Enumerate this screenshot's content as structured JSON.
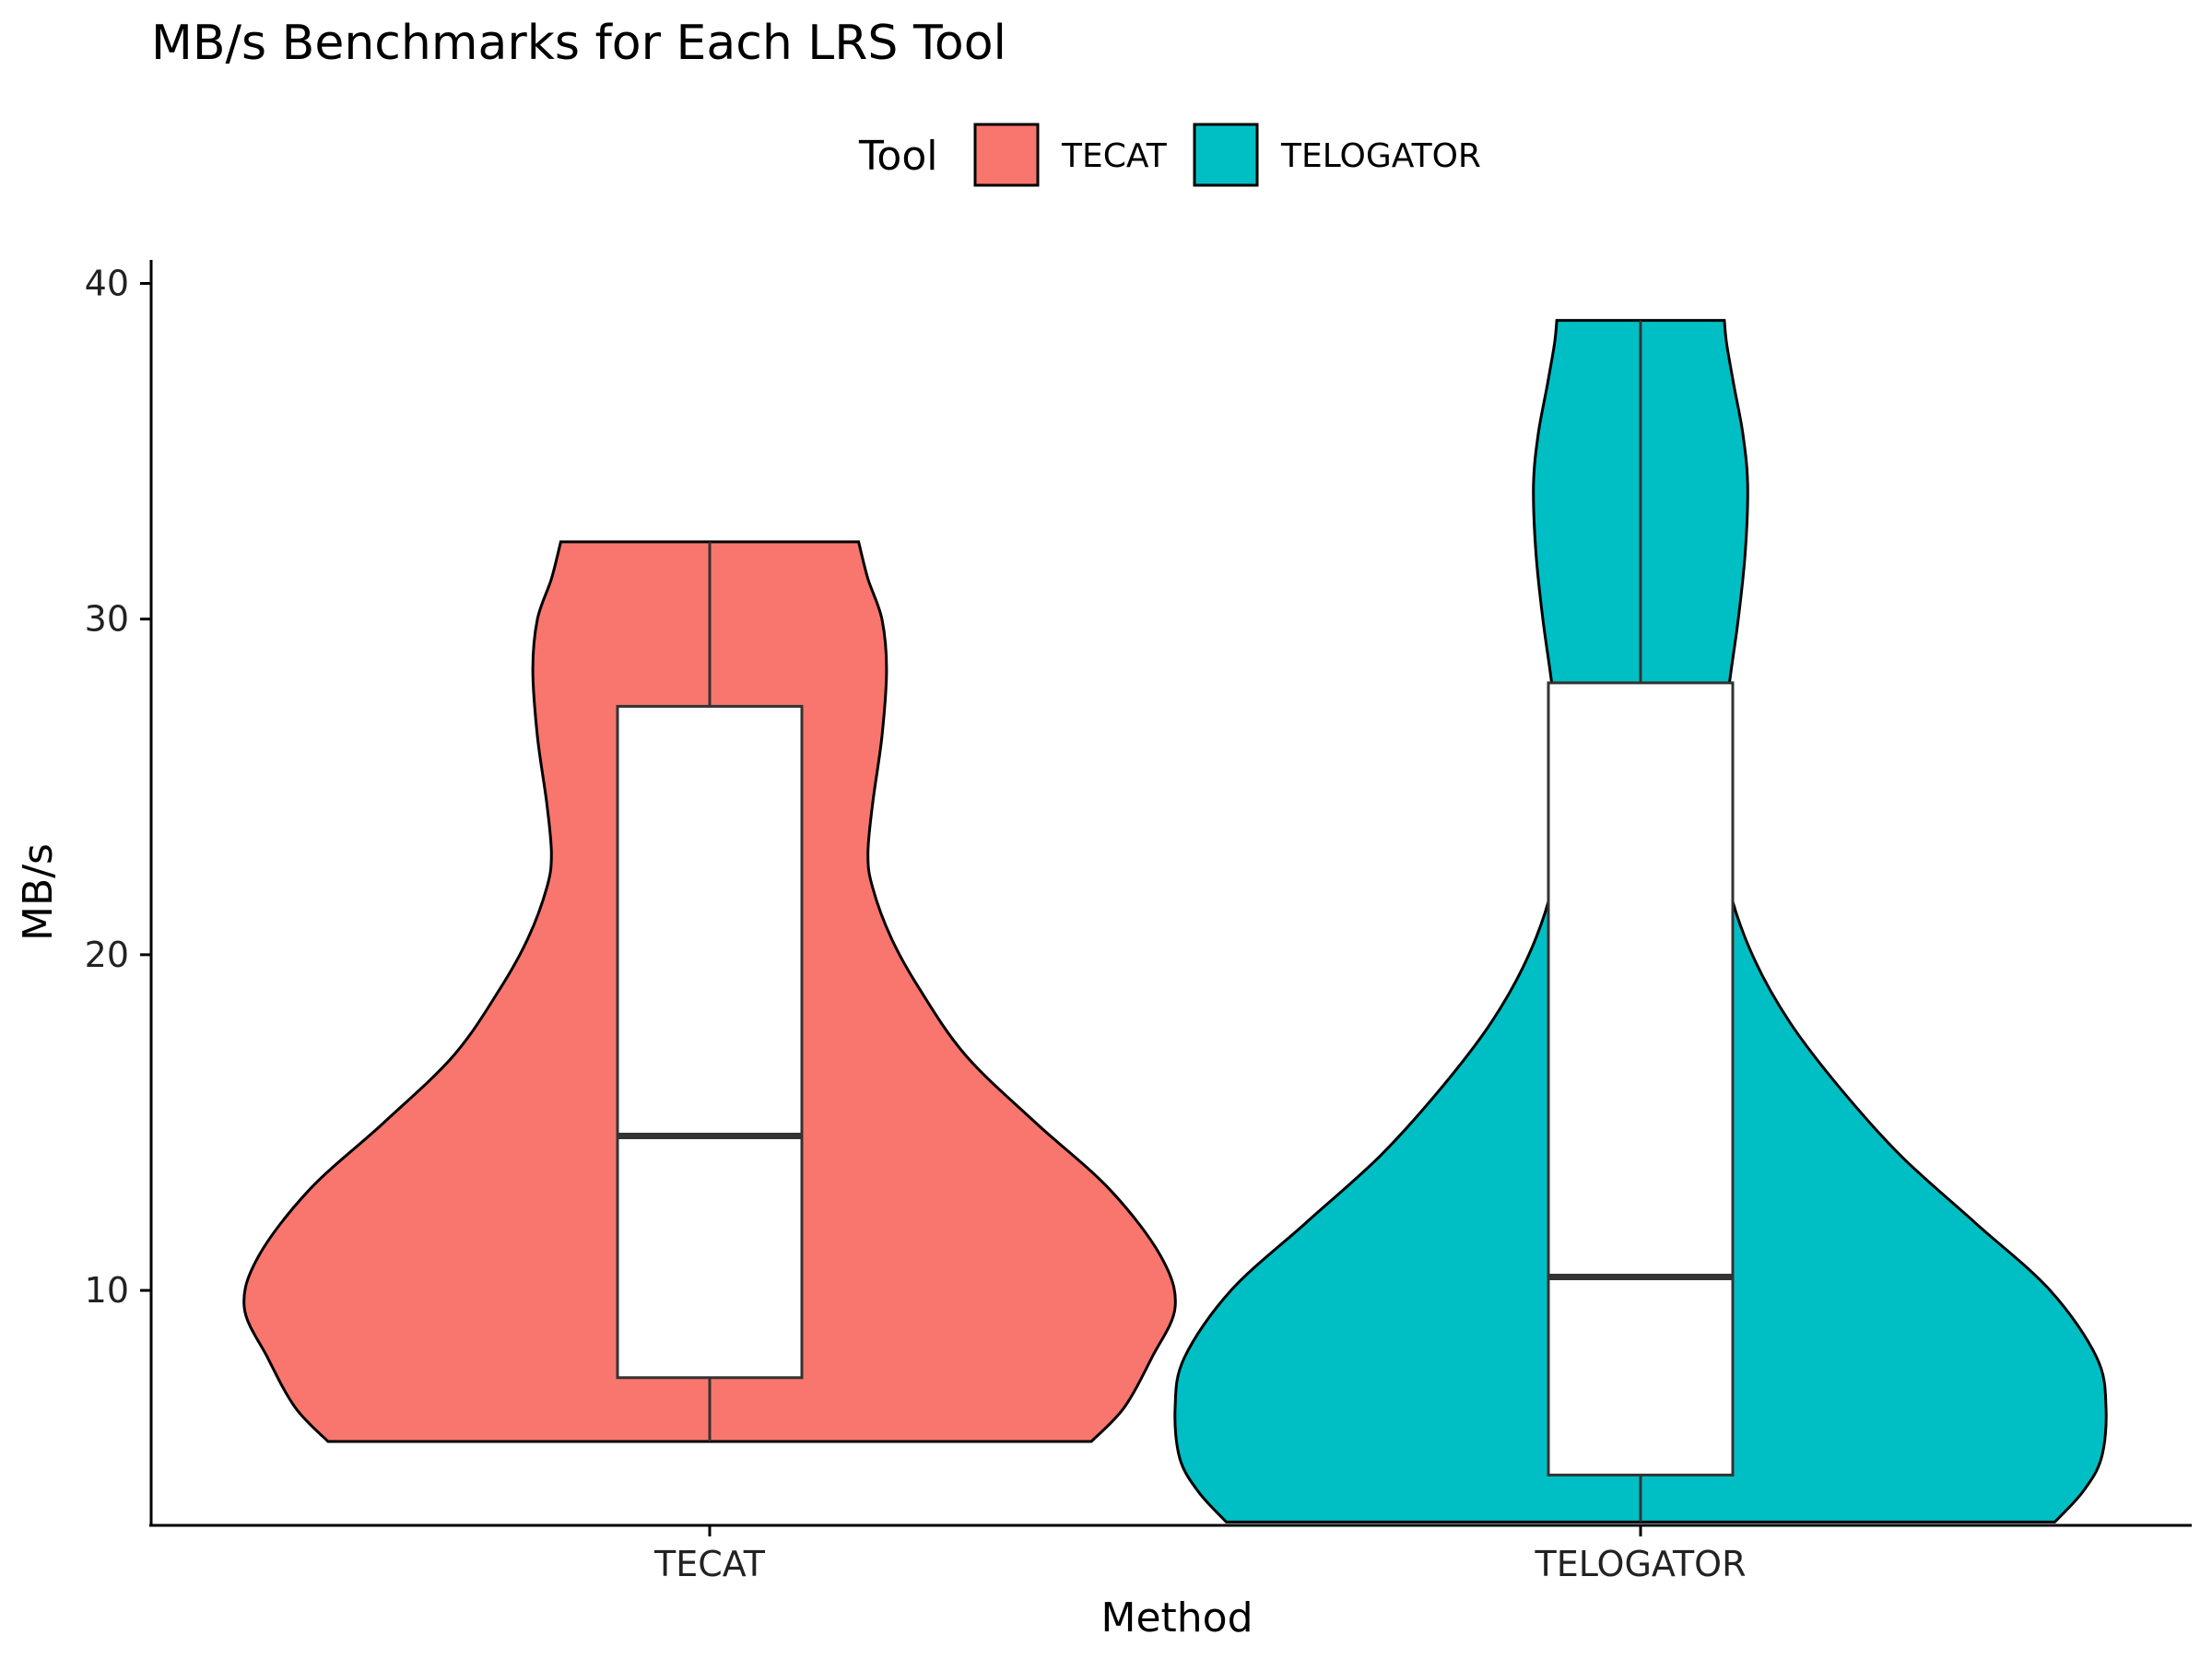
{
  "chart_data": {
    "type": "violin",
    "title": "MB/s Benchmarks for Each LRS Tool",
    "xlabel": "Method",
    "ylabel": "MB/s",
    "categories": [
      "TECAT",
      "TELOGATOR"
    ],
    "ylim": [
      3,
      40.7
    ],
    "yticks": [
      10,
      20,
      30,
      40
    ],
    "legend": {
      "title": "Tool",
      "position": "top",
      "items": [
        {
          "label": "TECAT",
          "color": "#F8766D"
        },
        {
          "label": "TELOGATOR",
          "color": "#00BFC4"
        }
      ]
    },
    "series": [
      {
        "name": "TECAT",
        "color": "#F8766D",
        "min": 5.5,
        "q1": 7.4,
        "median": 14.6,
        "q3": 27.4,
        "max": 32.3,
        "density": [
          [
            5.5,
            0.82
          ],
          [
            6.5,
            0.89
          ],
          [
            8,
            0.95
          ],
          [
            9.5,
            1.0
          ],
          [
            11,
            0.97
          ],
          [
            13,
            0.86
          ],
          [
            15,
            0.7
          ],
          [
            17,
            0.55
          ],
          [
            19,
            0.45
          ],
          [
            20.5,
            0.39
          ],
          [
            22,
            0.35
          ],
          [
            23,
            0.34
          ],
          [
            24.5,
            0.35
          ],
          [
            26.5,
            0.37
          ],
          [
            28.5,
            0.38
          ],
          [
            30,
            0.37
          ],
          [
            31.2,
            0.34
          ],
          [
            32.3,
            0.32
          ]
        ]
      },
      {
        "name": "TELOGATOR",
        "color": "#00BFC4",
        "min": 3.1,
        "q1": 4.5,
        "median": 10.4,
        "q3": 28.1,
        "max": 38.9,
        "density": [
          [
            3.1,
            0.89
          ],
          [
            4,
            0.95
          ],
          [
            5,
            0.99
          ],
          [
            6.5,
            1.0
          ],
          [
            8,
            0.98
          ],
          [
            10,
            0.88
          ],
          [
            12,
            0.72
          ],
          [
            14,
            0.56
          ],
          [
            16,
            0.43
          ],
          [
            18,
            0.32
          ],
          [
            20,
            0.24
          ],
          [
            22,
            0.19
          ],
          [
            24,
            0.17
          ],
          [
            26,
            0.175
          ],
          [
            28,
            0.19
          ],
          [
            30,
            0.21
          ],
          [
            32,
            0.225
          ],
          [
            34,
            0.23
          ],
          [
            35.5,
            0.22
          ],
          [
            37,
            0.2
          ],
          [
            38.2,
            0.185
          ],
          [
            38.9,
            0.18
          ]
        ]
      }
    ]
  }
}
